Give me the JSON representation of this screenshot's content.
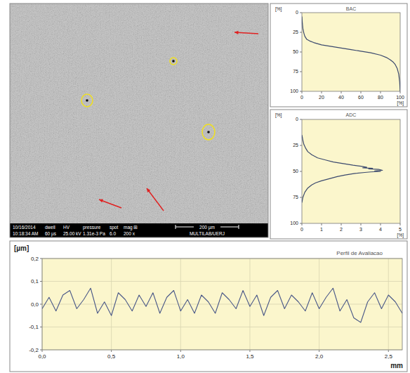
{
  "chart_data": [
    {
      "type": "line",
      "title": "BAC",
      "x_label": "[%]",
      "y_label": "[%]",
      "x": [
        0,
        0.5,
        1,
        2,
        3,
        5,
        8,
        12,
        20,
        30,
        40,
        50,
        60,
        70,
        80,
        86,
        90,
        93,
        95,
        97,
        98.5,
        99.5,
        100
      ],
      "values": [
        5,
        14,
        20,
        26,
        30,
        34,
        36,
        38,
        41,
        43,
        45,
        47,
        49,
        51,
        54,
        57,
        60,
        63,
        66,
        71,
        78,
        88,
        100
      ],
      "color": "#3c4a6e",
      "xlim": [
        0,
        100
      ],
      "ylim": [
        100,
        0
      ],
      "xticks": [
        0,
        20,
        40,
        60,
        80,
        100
      ],
      "yticks": [
        0,
        25,
        50,
        75,
        100
      ],
      "grid": false
    },
    {
      "type": "line",
      "title": "ADC",
      "x_label": "[%]",
      "y_label": "[%]",
      "x": [
        0,
        0.05,
        0.1,
        0.2,
        0.3,
        0.5,
        0.8,
        1.2,
        1.6,
        2.1,
        2.6,
        3.0,
        3.3,
        3.1,
        3.6,
        3.4,
        3.9,
        4.1,
        3.7,
        4.0,
        3.5,
        3.2,
        2.7,
        2.2,
        1.8,
        1.4,
        1.0,
        0.7,
        0.5,
        0.3,
        0.15,
        0.05,
        0
      ],
      "values": [
        15,
        20,
        24,
        28,
        31,
        34,
        37,
        39,
        41,
        42.5,
        44,
        45,
        46,
        46.5,
        47,
        47.5,
        48,
        49,
        49.5,
        50,
        50.5,
        51,
        52,
        53.5,
        55,
        57,
        59,
        61,
        63,
        66,
        70,
        75,
        80
      ],
      "color": "#3c4a6e",
      "xlim": [
        0,
        5
      ],
      "ylim": [
        100,
        0
      ],
      "xticks": [
        0,
        1,
        2,
        3,
        4,
        5
      ],
      "yticks": [
        0,
        25,
        50,
        75,
        100
      ],
      "grid": false
    },
    {
      "type": "line",
      "title": "Perfil de Avaliacao",
      "x_label": "mm",
      "y_label": "[µm]",
      "x": [
        0,
        0.05,
        0.1,
        0.15,
        0.2,
        0.25,
        0.3,
        0.35,
        0.4,
        0.45,
        0.5,
        0.55,
        0.6,
        0.65,
        0.7,
        0.75,
        0.8,
        0.85,
        0.9,
        0.95,
        1.0,
        1.05,
        1.1,
        1.15,
        1.2,
        1.25,
        1.3,
        1.35,
        1.4,
        1.45,
        1.5,
        1.55,
        1.6,
        1.65,
        1.7,
        1.75,
        1.8,
        1.85,
        1.9,
        1.95,
        2.0,
        2.05,
        2.1,
        2.15,
        2.2,
        2.25,
        2.3,
        2.35,
        2.4,
        2.45,
        2.5,
        2.55,
        2.6
      ],
      "values": [
        -0.02,
        0.03,
        -0.03,
        0.04,
        0.06,
        -0.02,
        0.02,
        0.07,
        -0.04,
        0.01,
        -0.05,
        0.05,
        0.02,
        -0.03,
        0.04,
        -0.01,
        0.05,
        -0.04,
        0.03,
        0.06,
        -0.03,
        0.02,
        -0.04,
        0.04,
        0.01,
        -0.04,
        0.05,
        0.02,
        -0.02,
        0.06,
        -0.01,
        0.04,
        -0.05,
        0.03,
        0.06,
        -0.02,
        0.04,
        0.01,
        -0.03,
        0.05,
        -0.02,
        0.03,
        0.07,
        -0.03,
        0.02,
        -0.06,
        -0.08,
        0.01,
        0.05,
        -0.02,
        0.04,
        0.01,
        -0.04
      ],
      "color": "#4a5888",
      "xlim": [
        0,
        2.6
      ],
      "ylim": [
        -0.2,
        0.2
      ],
      "xticks": [
        {
          "value": 0,
          "label": "0,0"
        },
        {
          "value": 0.5,
          "label": "0,5"
        },
        {
          "value": 1,
          "label": "1,0"
        },
        {
          "value": 1.5,
          "label": "1,5"
        },
        {
          "value": 2,
          "label": "2,0"
        },
        {
          "value": 2.5,
          "label": "2,5"
        }
      ],
      "yticks": [
        {
          "value": -0.2,
          "label": "-0,2"
        },
        {
          "value": -0.1,
          "label": "-0,1"
        },
        {
          "value": 0,
          "label": "0,0"
        },
        {
          "value": 0.1,
          "label": "0,1"
        },
        {
          "value": 0.2,
          "label": "0,2"
        }
      ],
      "grid": true
    }
  ],
  "micrograph": {
    "info_labels": [
      "10/16/2014",
      "dwell",
      "HV",
      "pressure",
      "spot",
      "mag ⊞"
    ],
    "info_values": [
      "10:18:34 AM",
      "60 µs",
      "25.00 kV",
      "1.31e-3 Pa",
      "6.0",
      "200 x"
    ],
    "scale_bar": "200 µm",
    "lab": "MULTILAB/UERJ"
  }
}
